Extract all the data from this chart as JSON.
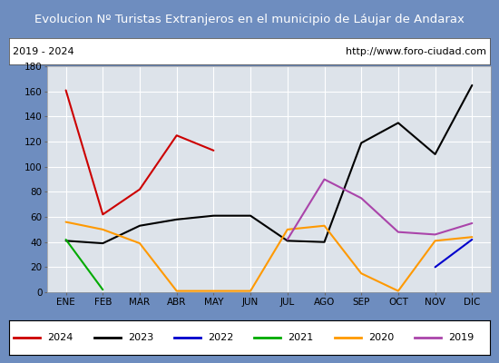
{
  "title": "Evolucion Nº Turistas Extranjeros en el municipio de Láujar de Andarax",
  "subtitle_left": "2019 - 2024",
  "subtitle_right": "http://www.foro-ciudad.com",
  "months": [
    "ENE",
    "FEB",
    "MAR",
    "ABR",
    "MAY",
    "JUN",
    "JUL",
    "AGO",
    "SEP",
    "OCT",
    "NOV",
    "DIC"
  ],
  "series": {
    "2024": {
      "color": "#cc0000",
      "data": [
        161,
        62,
        82,
        125,
        113,
        null,
        null,
        null,
        null,
        null,
        null,
        null
      ]
    },
    "2023": {
      "color": "#000000",
      "data": [
        41,
        39,
        53,
        58,
        61,
        61,
        41,
        40,
        119,
        135,
        110,
        165
      ]
    },
    "2022": {
      "color": "#0000cc",
      "data": [
        null,
        null,
        null,
        null,
        null,
        null,
        null,
        null,
        null,
        null,
        20,
        42
      ]
    },
    "2021": {
      "color": "#00aa00",
      "data": [
        42,
        2,
        null,
        null,
        null,
        null,
        null,
        null,
        null,
        null,
        null,
        null
      ]
    },
    "2020": {
      "color": "#ff9900",
      "data": [
        56,
        50,
        39,
        1,
        1,
        1,
        50,
        53,
        15,
        1,
        41,
        44
      ]
    },
    "2019": {
      "color": "#aa44aa",
      "data": [
        null,
        null,
        null,
        null,
        null,
        null,
        42,
        90,
        75,
        48,
        46,
        55
      ]
    }
  },
  "ylim": [
    0,
    180
  ],
  "yticks": [
    0,
    20,
    40,
    60,
    80,
    100,
    120,
    140,
    160,
    180
  ],
  "title_bg": "#4e6fa3",
  "plot_bg": "#dde3ea",
  "grid_color": "#ffffff",
  "outer_bg": "#6e8dbf",
  "legend_order": [
    "2024",
    "2023",
    "2022",
    "2021",
    "2020",
    "2019"
  ]
}
